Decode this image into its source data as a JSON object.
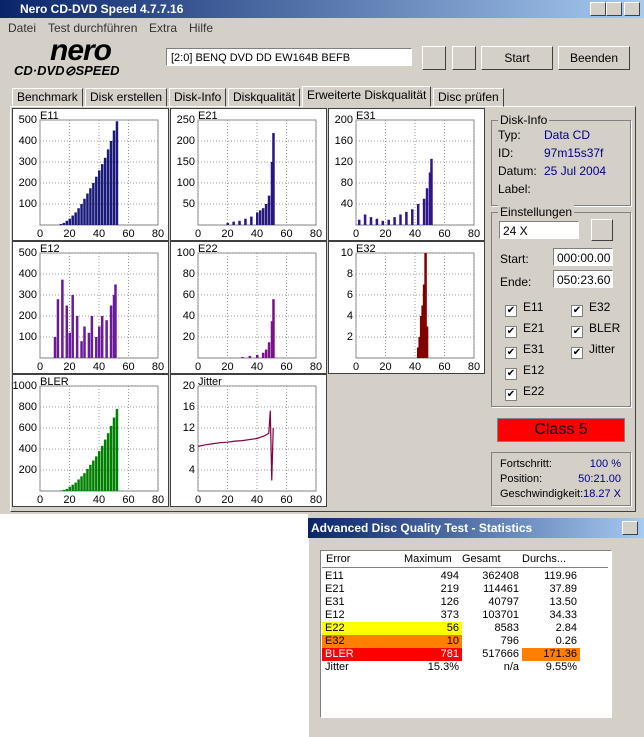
{
  "window": {
    "title": "Nero CD-DVD Speed 4.7.7.16"
  },
  "menu": [
    "Datei",
    "Test durchführen",
    "Extra",
    "Hilfe"
  ],
  "logo": {
    "main": "nero",
    "sub": "CD·DVD⊘SPEED"
  },
  "toolbar": {
    "drive": "[2:0]  BENQ DVD DD EW164B BEFB",
    "start": "Start",
    "stop": "Beenden"
  },
  "tabs": [
    "Benchmark",
    "Disk erstellen",
    "Disk-Info",
    "Diskqualität",
    "Erweiterte Diskqualität",
    "Disc prüfen"
  ],
  "chart_data": [
    {
      "type": "bar",
      "title": "E11",
      "color": "#1a1a7a",
      "xlim": [
        0,
        80
      ],
      "xticks": [
        0,
        20,
        40,
        60,
        80
      ],
      "ylim": [
        0,
        500
      ],
      "yticks": [
        100,
        200,
        300,
        400,
        500
      ],
      "x": [
        14,
        16,
        18,
        20,
        22,
        24,
        26,
        28,
        30,
        32,
        34,
        36,
        38,
        40,
        42,
        44,
        46,
        48,
        50,
        52
      ],
      "values": [
        5,
        10,
        20,
        30,
        45,
        60,
        80,
        100,
        125,
        150,
        175,
        200,
        230,
        260,
        290,
        320,
        360,
        400,
        450,
        494
      ]
    },
    {
      "type": "bar",
      "title": "E21",
      "color": "#26187f",
      "xlim": [
        0,
        80
      ],
      "xticks": [
        0,
        20,
        40,
        60,
        80
      ],
      "ylim": [
        0,
        250
      ],
      "yticks": [
        50,
        100,
        150,
        200,
        250
      ],
      "x": [
        20,
        24,
        28,
        32,
        36,
        40,
        42,
        44,
        46,
        48,
        50,
        51
      ],
      "values": [
        5,
        8,
        10,
        15,
        20,
        30,
        35,
        40,
        50,
        70,
        150,
        219
      ]
    },
    {
      "type": "bar",
      "title": "E31",
      "color": "#30168a",
      "xlim": [
        0,
        80
      ],
      "xticks": [
        0,
        20,
        40,
        60,
        80
      ],
      "ylim": [
        0,
        200
      ],
      "yticks": [
        40,
        80,
        120,
        160,
        200
      ],
      "x": [
        2,
        6,
        10,
        14,
        18,
        22,
        26,
        30,
        34,
        38,
        42,
        46,
        48,
        50,
        51
      ],
      "values": [
        10,
        20,
        15,
        12,
        8,
        10,
        15,
        20,
        25,
        30,
        40,
        50,
        70,
        100,
        126
      ]
    },
    {
      "type": "bar",
      "title": "E12",
      "color": "#6a1a9a",
      "xlim": [
        0,
        80
      ],
      "xticks": [
        0,
        20,
        40,
        60,
        80
      ],
      "ylim": [
        0,
        500
      ],
      "yticks": [
        100,
        200,
        300,
        400,
        500
      ],
      "x": [
        10,
        12,
        15,
        18,
        20,
        22,
        25,
        28,
        30,
        33,
        35,
        38,
        40,
        42,
        45,
        48,
        50,
        51
      ],
      "values": [
        100,
        280,
        373,
        250,
        120,
        300,
        200,
        80,
        150,
        120,
        200,
        100,
        150,
        200,
        180,
        250,
        300,
        350
      ]
    },
    {
      "type": "bar",
      "title": "E22",
      "color": "#7a108a",
      "xlim": [
        0,
        80
      ],
      "xticks": [
        0,
        20,
        40,
        60,
        80
      ],
      "ylim": [
        0,
        100
      ],
      "yticks": [
        20,
        40,
        60,
        80,
        100
      ],
      "x": [
        30,
        35,
        40,
        44,
        46,
        48,
        50,
        51
      ],
      "values": [
        1,
        2,
        3,
        5,
        8,
        15,
        35,
        56
      ]
    },
    {
      "type": "bar",
      "title": "E32",
      "color": "#800000",
      "xlim": [
        0,
        80
      ],
      "xticks": [
        0,
        20,
        40,
        60,
        80
      ],
      "ylim": [
        0,
        10
      ],
      "yticks": [
        2,
        4,
        6,
        8,
        10
      ],
      "x": [
        42,
        43,
        44,
        45,
        46,
        47,
        48
      ],
      "values": [
        1,
        2,
        4,
        5,
        7,
        10,
        3
      ]
    },
    {
      "type": "bar",
      "title": "BLER",
      "color": "#008000",
      "xlim": [
        0,
        80
      ],
      "xticks": [
        0,
        20,
        40,
        60,
        80
      ],
      "ylim": [
        0,
        1000
      ],
      "yticks": [
        200,
        400,
        600,
        800,
        1000
      ],
      "x": [
        14,
        16,
        18,
        20,
        22,
        24,
        26,
        28,
        30,
        32,
        34,
        36,
        38,
        40,
        42,
        44,
        46,
        48,
        50,
        52
      ],
      "values": [
        5,
        10,
        20,
        40,
        60,
        80,
        110,
        140,
        170,
        210,
        250,
        290,
        330,
        380,
        430,
        490,
        550,
        620,
        700,
        781
      ]
    },
    {
      "type": "line",
      "title": "Jitter",
      "color": "#800040",
      "xlim": [
        0,
        80
      ],
      "xticks": [
        0,
        20,
        40,
        60,
        80
      ],
      "ylim": [
        0,
        20
      ],
      "yticks": [
        4,
        8,
        12,
        16,
        20
      ],
      "x": [
        0,
        5,
        10,
        15,
        20,
        25,
        30,
        35,
        40,
        45,
        48,
        49,
        50,
        51
      ],
      "values": [
        8.5,
        8.8,
        9,
        9.2,
        9.3,
        9.5,
        9.6,
        9.8,
        10,
        10.5,
        11,
        15.3,
        2,
        12
      ]
    }
  ],
  "disk_info": {
    "title": "Disk-Info",
    "rows": [
      [
        "Typ:",
        "Data CD"
      ],
      [
        "ID:",
        "97m15s37f"
      ],
      [
        "Datum:",
        "25 Jul 2004"
      ],
      [
        "Label:",
        ""
      ]
    ]
  },
  "settings": {
    "title": "Einstellungen",
    "speed": "24 X",
    "start_label": "Start:",
    "start": "000:00.00",
    "end_label": "Ende:",
    "end": "050:23.60",
    "checks": [
      "E11",
      "E32",
      "E21",
      "BLER",
      "E31",
      "Jitter",
      "E12",
      "E22"
    ]
  },
  "class": "Class 5",
  "progress": [
    [
      "Fortschritt:",
      "100 %"
    ],
    [
      "Position:",
      "50:21.00"
    ],
    [
      "Geschwindigkeit:",
      "18.27 X"
    ]
  ],
  "stats": {
    "title": "Advanced Disc Quality Test - Statistics",
    "header": [
      "Error",
      "Maximum",
      "Gesamt",
      "Durchs..."
    ],
    "rows": [
      {
        "cells": [
          "E11",
          "494",
          "362408",
          "119.96"
        ],
        "fills": [
          null,
          null,
          null,
          null
        ]
      },
      {
        "cells": [
          "E21",
          "219",
          "114461",
          "37.89"
        ],
        "fills": [
          null,
          null,
          null,
          null
        ]
      },
      {
        "cells": [
          "E31",
          "126",
          "40797",
          "13.50"
        ],
        "fills": [
          null,
          null,
          null,
          null
        ]
      },
      {
        "cells": [
          "E12",
          "373",
          "103701",
          "34.33"
        ],
        "fills": [
          null,
          null,
          null,
          null
        ]
      },
      {
        "cells": [
          "E22",
          "56",
          "8583",
          "2.84"
        ],
        "fills": [
          "#ffff00",
          "#ffff00",
          null,
          null
        ]
      },
      {
        "cells": [
          "E32",
          "10",
          "796",
          "0.26"
        ],
        "fills": [
          "#ff8000",
          "#ff8000",
          null,
          null
        ]
      },
      {
        "cells": [
          "BLER",
          "781",
          "517666",
          "171.36"
        ],
        "fills": [
          "#ff0000",
          "#ff0000",
          null,
          "#ff8000"
        ]
      },
      {
        "cells": [
          "Jitter",
          "15.3%",
          "n/a",
          "9.55%"
        ],
        "fills": [
          null,
          null,
          null,
          null
        ]
      }
    ]
  }
}
